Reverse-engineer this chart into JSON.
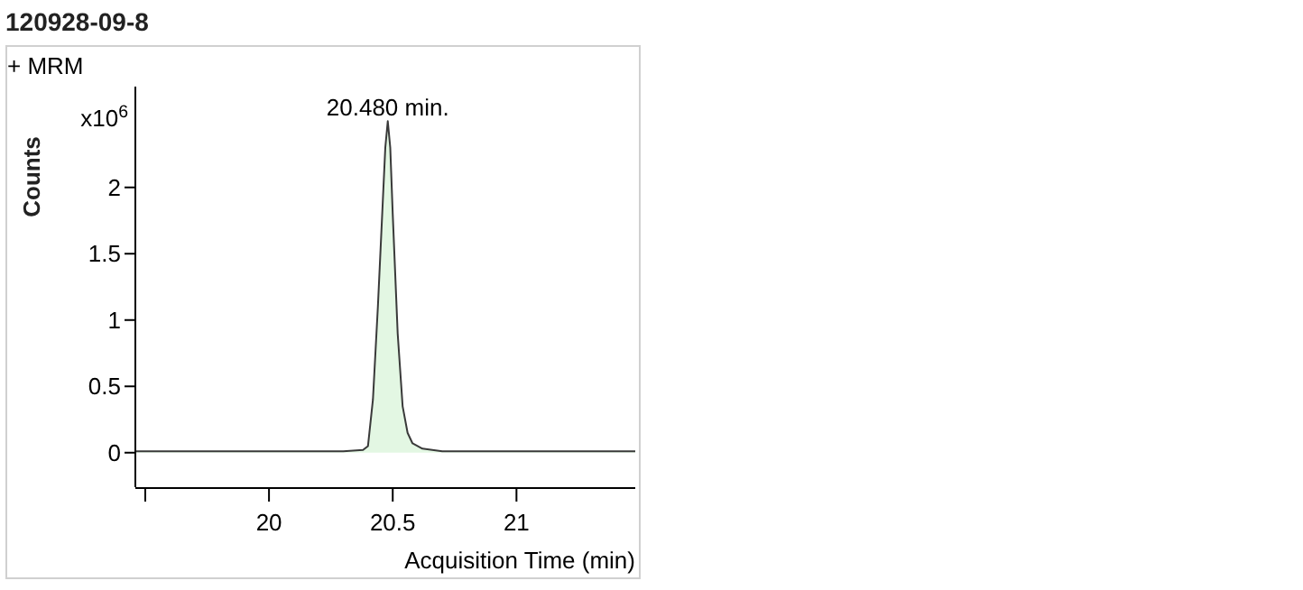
{
  "chart_data": {
    "type": "area",
    "title": "120928-09-8",
    "xlabel": "Acquisition Time (min)",
    "ylabel": "Counts",
    "annotations": [
      "+ MRM",
      "x10$^{6}$",
      {
        "text": "20.480 min.",
        "x": 20.48,
        "y": 2.5
      }
    ],
    "x": [
      19.46,
      20.3,
      20.38,
      20.4,
      20.42,
      20.44,
      20.46,
      20.47,
      20.48,
      20.49,
      20.5,
      20.52,
      20.54,
      20.56,
      20.58,
      20.62,
      20.7,
      21.48
    ],
    "series": [
      {
        "color": "#e3f7e3",
        "values": [
          0.01,
          0.01,
          0.02,
          0.05,
          0.4,
          1.1,
          1.9,
          2.3,
          2.5,
          2.3,
          1.8,
          0.9,
          0.35,
          0.15,
          0.07,
          0.03,
          0.01,
          0.01
        ]
      }
    ],
    "xlim": [
      19.46,
      21.48
    ],
    "xticks": [
      {
        "value": 19.5,
        "label": null
      },
      20,
      20.5,
      21
    ],
    "ylim": [
      -0.26,
      2.76
    ],
    "yticks": [
      0,
      0.5,
      1,
      1.5,
      2
    ],
    "grid": false
  }
}
